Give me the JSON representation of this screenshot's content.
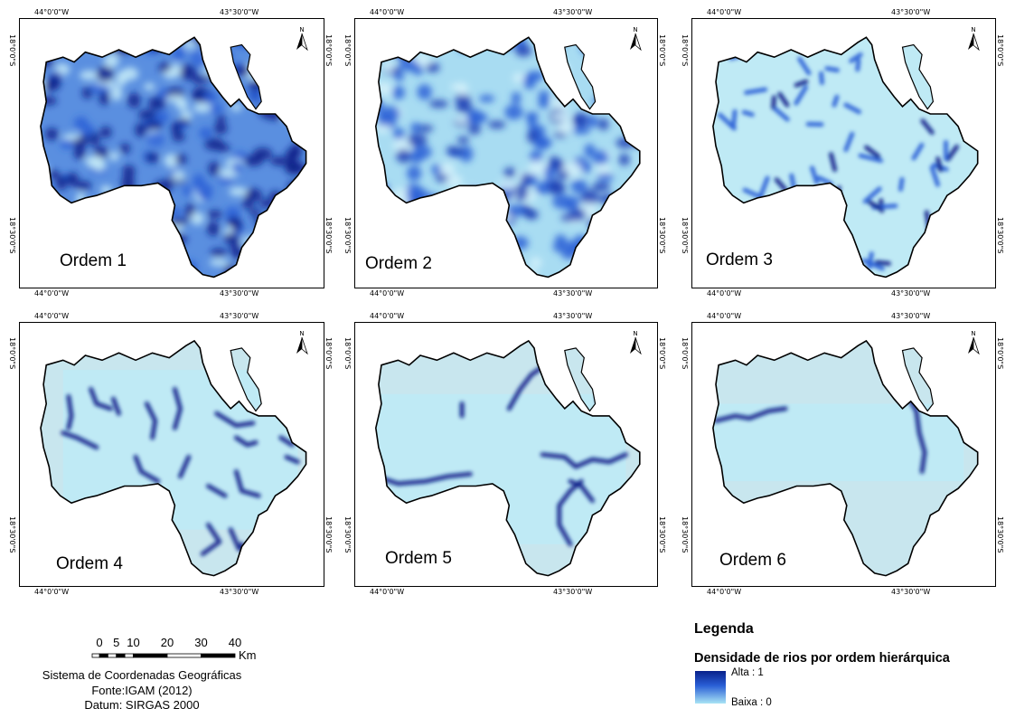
{
  "panels": [
    {
      "label": "Ordem 1"
    },
    {
      "label": "Ordem 2"
    },
    {
      "label": "Ordem 3"
    },
    {
      "label": "Ordem 4"
    },
    {
      "label": "Ordem 5"
    },
    {
      "label": "Ordem 6"
    }
  ],
  "ticks": {
    "lon_left": "44°0'0\"W",
    "lon_right": "43°30'0\"W",
    "lat_top": "18°0'0\"S",
    "lat_bottom": "18°30'0\"S"
  },
  "north_label": "N",
  "scale": {
    "labels": [
      "0",
      "5",
      "10",
      "20",
      "30",
      "40"
    ],
    "unit": "Km"
  },
  "footer": {
    "line1": "Sistema de Coordenadas Geográficas",
    "line2": "Fonte:IGAM (2012)",
    "line3": "Datum: SIRGAS 2000"
  },
  "legend": {
    "title": "Legenda",
    "subtitle": "Densidade de rios por ordem hierárquica",
    "high": "Alta : 1",
    "low": "Baixa : 0"
  },
  "colors": {
    "dark_blue": "#08208a",
    "mid_blue": "#2a5fd6",
    "light_cyan": "#bfeaf5",
    "outside_gray": "#c8e6ee"
  }
}
